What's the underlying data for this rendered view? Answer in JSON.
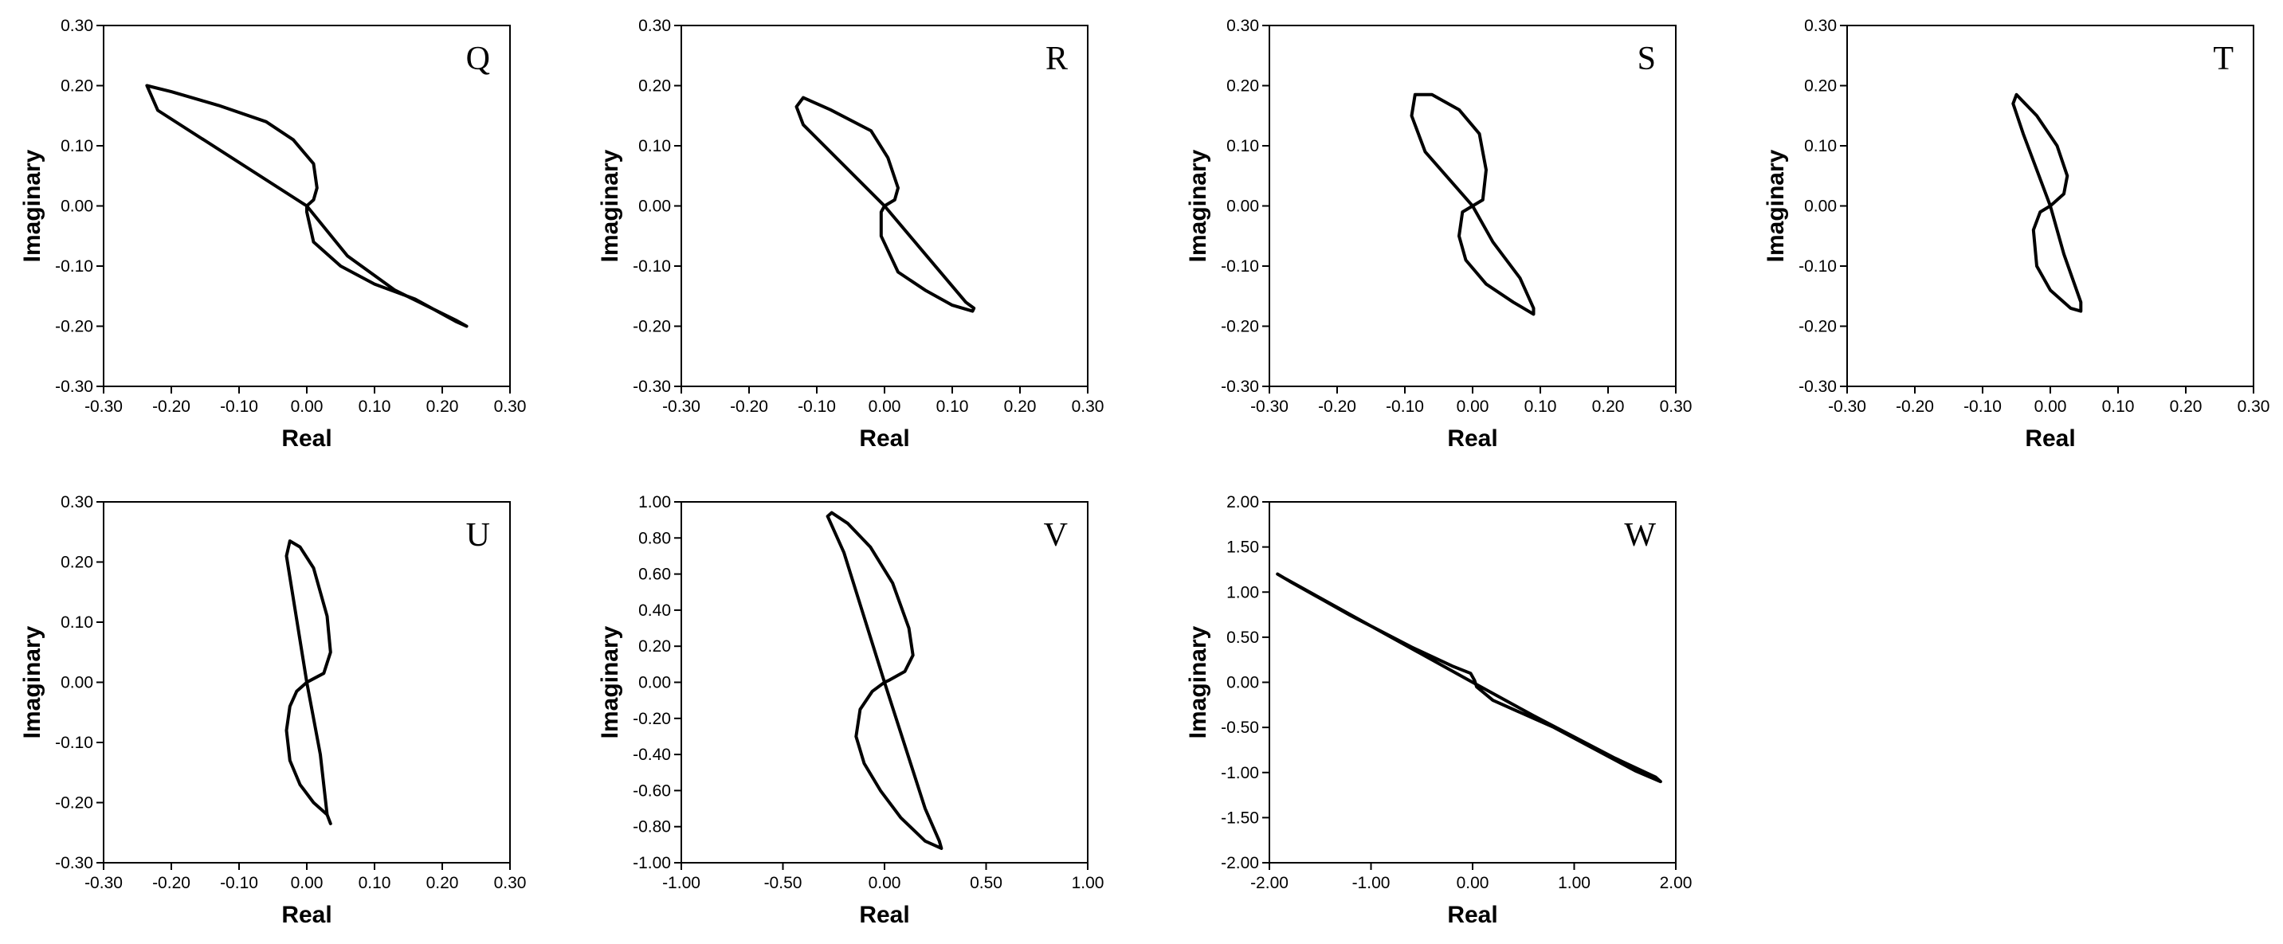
{
  "chart_data": [
    {
      "type": "line",
      "panel": "Q",
      "xlabel": "Real",
      "ylabel": "Imaginary",
      "grid": false,
      "legend": "none",
      "xlim": [
        -0.3,
        0.3
      ],
      "ylim": [
        -0.3,
        0.3
      ],
      "xticks": [
        "-0.30",
        "-0.20",
        "-0.10",
        "0.00",
        "0.10",
        "0.20",
        "0.30"
      ],
      "yticks": [
        "0.30",
        "0.20",
        "0.10",
        "0.00",
        "-0.10",
        "-0.20",
        "-0.30"
      ],
      "series": [
        {
          "name": "Q",
          "x": [
            0,
            -0.22,
            -0.236,
            -0.2,
            -0.13,
            -0.06,
            -0.02,
            0.01,
            0.015,
            0.01,
            0,
            0,
            0.01,
            0.05,
            0.1,
            0.16,
            0.22,
            0.236,
            0.22,
            0.13,
            0.06,
            0
          ],
          "y": [
            0,
            0.159,
            0.2,
            0.19,
            0.167,
            0.14,
            0.11,
            0.07,
            0.03,
            0.01,
            0,
            -0.01,
            -0.06,
            -0.1,
            -0.13,
            -0.155,
            -0.192,
            -0.2,
            -0.19,
            -0.14,
            -0.083,
            0
          ]
        }
      ]
    },
    {
      "type": "line",
      "panel": "R",
      "xlabel": "Real",
      "ylabel": "Imaginary",
      "grid": false,
      "legend": "none",
      "xlim": [
        -0.3,
        0.3
      ],
      "ylim": [
        -0.3,
        0.3
      ],
      "xticks": [
        "-0.30",
        "-0.20",
        "-0.10",
        "0.00",
        "0.10",
        "0.20",
        "0.30"
      ],
      "yticks": [
        "0.30",
        "0.20",
        "0.10",
        "0.00",
        "-0.10",
        "-0.20",
        "-0.30"
      ],
      "series": [
        {
          "name": "R",
          "x": [
            0,
            -0.12,
            -0.13,
            -0.12,
            -0.08,
            -0.02,
            0.005,
            0.02,
            0.015,
            0,
            -0.005,
            -0.005,
            0.02,
            0.06,
            0.1,
            0.13,
            0.132,
            0.12,
            0.06,
            0
          ],
          "y": [
            0,
            0.135,
            0.165,
            0.18,
            0.16,
            0.125,
            0.08,
            0.03,
            0.01,
            0,
            -0.01,
            -0.05,
            -0.11,
            -0.14,
            -0.165,
            -0.175,
            -0.17,
            -0.16,
            -0.08,
            0
          ]
        }
      ]
    },
    {
      "type": "line",
      "panel": "S",
      "xlabel": "Real",
      "ylabel": "Imaginary",
      "grid": false,
      "legend": "none",
      "xlim": [
        -0.3,
        0.3
      ],
      "ylim": [
        -0.3,
        0.3
      ],
      "xticks": [
        "-0.30",
        "-0.20",
        "-0.10",
        "0.00",
        "0.10",
        "0.20",
        "0.30"
      ],
      "yticks": [
        "0.30",
        "0.20",
        "0.10",
        "0.00",
        "-0.10",
        "-0.20",
        "-0.30"
      ],
      "series": [
        {
          "name": "S",
          "x": [
            0,
            -0.07,
            -0.09,
            -0.085,
            -0.06,
            -0.02,
            0.01,
            0.02,
            0.015,
            0,
            -0.015,
            -0.02,
            -0.01,
            0.02,
            0.06,
            0.09,
            0.09,
            0.07,
            0.03,
            0
          ],
          "y": [
            0,
            0.09,
            0.15,
            0.185,
            0.185,
            0.16,
            0.12,
            0.06,
            0.01,
            0,
            -0.01,
            -0.05,
            -0.09,
            -0.13,
            -0.16,
            -0.18,
            -0.17,
            -0.12,
            -0.06,
            0
          ]
        }
      ]
    },
    {
      "type": "line",
      "panel": "T",
      "xlabel": "Real",
      "ylabel": "Imaginary",
      "grid": false,
      "legend": "none",
      "xlim": [
        -0.3,
        0.3
      ],
      "ylim": [
        -0.3,
        0.3
      ],
      "xticks": [
        "-0.30",
        "-0.20",
        "-0.10",
        "0.00",
        "0.10",
        "0.20",
        "0.30"
      ],
      "yticks": [
        "0.30",
        "0.20",
        "0.10",
        "0.00",
        "-0.10",
        "-0.20",
        "-0.30"
      ],
      "series": [
        {
          "name": "T",
          "x": [
            0,
            -0.04,
            -0.055,
            -0.05,
            -0.02,
            0.01,
            0.025,
            0.02,
            0.005,
            0,
            -0.015,
            -0.025,
            -0.02,
            0,
            0.03,
            0.045,
            0.045,
            0.02,
            0
          ],
          "y": [
            0,
            0.12,
            0.17,
            0.185,
            0.15,
            0.1,
            0.05,
            0.02,
            0.005,
            0,
            -0.01,
            -0.04,
            -0.1,
            -0.14,
            -0.17,
            -0.175,
            -0.16,
            -0.08,
            0
          ]
        }
      ]
    },
    {
      "type": "line",
      "panel": "U",
      "xlabel": "Real",
      "ylabel": "Imaginary",
      "grid": false,
      "legend": "none",
      "xlim": [
        -0.3,
        0.3
      ],
      "ylim": [
        -0.3,
        0.3
      ],
      "xticks": [
        "-0.30",
        "-0.20",
        "-0.10",
        "0.00",
        "0.10",
        "0.20",
        "0.30"
      ],
      "yticks": [
        "0.30",
        "0.20",
        "0.10",
        "0.00",
        "-0.10",
        "-0.20",
        "-0.30"
      ],
      "series": [
        {
          "name": "U",
          "x": [
            0,
            -0.02,
            -0.03,
            -0.025,
            -0.01,
            0.01,
            0.03,
            0.035,
            0.025,
            0.005,
            0,
            -0.015,
            -0.025,
            -0.03,
            -0.025,
            -0.01,
            0.01,
            0.03,
            0.035,
            0.03,
            0.02,
            0
          ],
          "y": [
            0,
            0.14,
            0.21,
            0.235,
            0.225,
            0.19,
            0.11,
            0.05,
            0.015,
            0.003,
            0,
            -0.015,
            -0.04,
            -0.08,
            -0.13,
            -0.17,
            -0.2,
            -0.22,
            -0.235,
            -0.22,
            -0.12,
            0
          ]
        }
      ]
    },
    {
      "type": "line",
      "panel": "V",
      "xlabel": "Real",
      "ylabel": "Imaginary",
      "grid": false,
      "legend": "none",
      "xlim": [
        -1.0,
        1.0
      ],
      "ylim": [
        -1.0,
        1.0
      ],
      "xticks": [
        "-1.00",
        "-0.50",
        "0.00",
        "0.50",
        "1.00"
      ],
      "yticks": [
        "1.00",
        "0.80",
        "0.60",
        "0.40",
        "0.20",
        "0.00",
        "-0.20",
        "-0.40",
        "-0.60",
        "-0.80",
        "-1.00"
      ],
      "series": [
        {
          "name": "V",
          "x": [
            0,
            -0.2,
            -0.28,
            -0.26,
            -0.18,
            -0.07,
            0.04,
            0.12,
            0.14,
            0.1,
            0.02,
            0,
            -0.06,
            -0.12,
            -0.14,
            -0.1,
            -0.02,
            0.08,
            0.2,
            0.28,
            0.27,
            0.2,
            0
          ],
          "y": [
            0,
            0.72,
            0.92,
            0.94,
            0.88,
            0.75,
            0.55,
            0.3,
            0.15,
            0.06,
            0.01,
            0,
            -0.05,
            -0.15,
            -0.3,
            -0.45,
            -0.6,
            -0.75,
            -0.88,
            -0.92,
            -0.88,
            -0.7,
            0
          ]
        }
      ]
    },
    {
      "type": "line",
      "panel": "W",
      "xlabel": "Real",
      "ylabel": "Imaginary",
      "grid": false,
      "legend": "none",
      "xlim": [
        -2.0,
        2.0
      ],
      "ylim": [
        -2.0,
        2.0
      ],
      "xticks": [
        "-2.00",
        "-1.00",
        "0.00",
        "1.00",
        "2.00"
      ],
      "yticks": [
        "2.00",
        "1.50",
        "1.00",
        "0.50",
        "0.00",
        "-0.50",
        "-1.00",
        "-1.50",
        "-2.00"
      ],
      "series": [
        {
          "name": "W",
          "x": [
            0,
            -1.86,
            -1.92,
            -1.8,
            -1.2,
            -0.6,
            -0.2,
            -0.02,
            0.02,
            0.04,
            0.2,
            0.8,
            1.6,
            1.85,
            1.8,
            1.4,
            0.6,
            0
          ],
          "y": [
            0,
            1.16,
            1.2,
            1.12,
            0.74,
            0.39,
            0.18,
            0.1,
            0.02,
            -0.05,
            -0.2,
            -0.5,
            -0.98,
            -1.1,
            -1.05,
            -0.84,
            -0.37,
            0
          ]
        }
      ]
    }
  ]
}
